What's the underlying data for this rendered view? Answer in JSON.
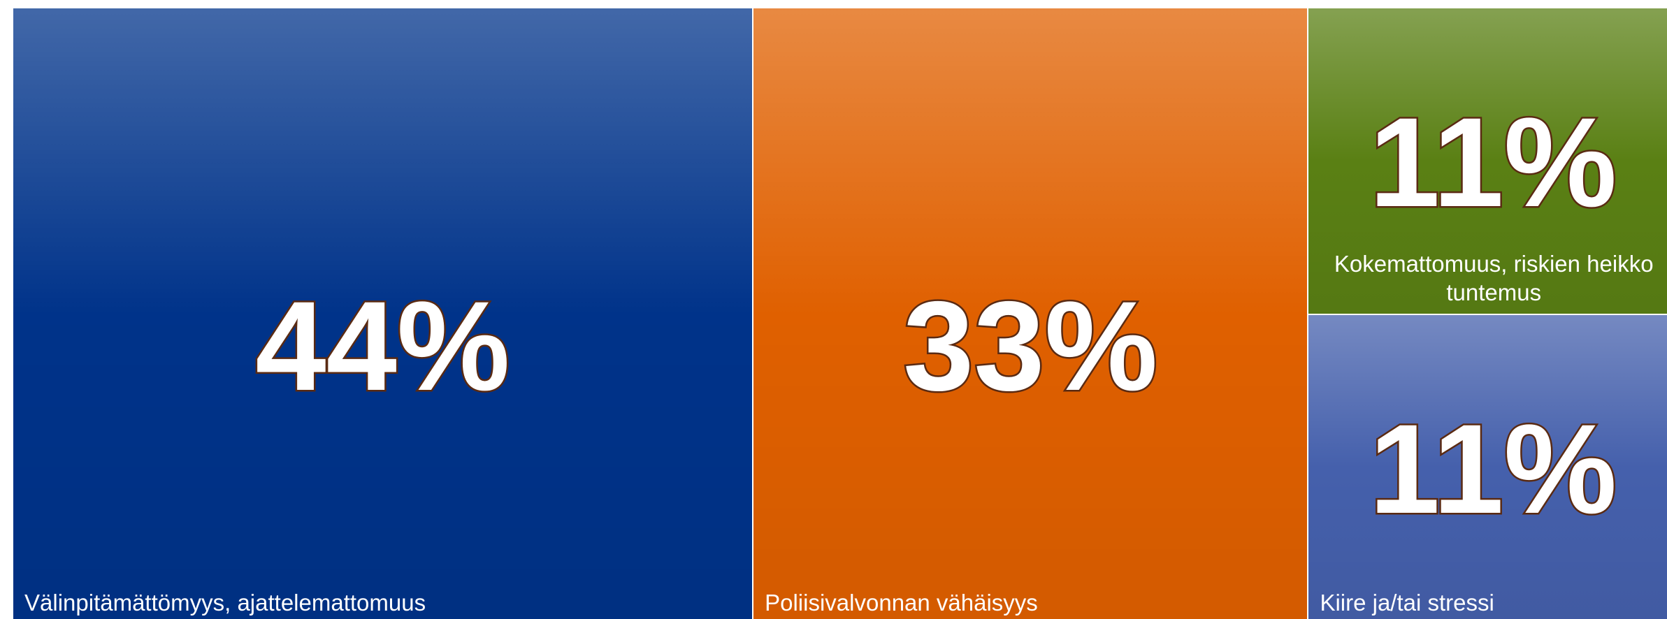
{
  "chart_data": {
    "type": "treemap",
    "categories": [
      "Välinpitämättömyys, ajattelemattomuus",
      "Poliisivalvonnan vähäisyys",
      "Kokemattomuus, riskien heikko tuntemus",
      "Kiire ja/tai stressi"
    ],
    "values": [
      44,
      33,
      11,
      11
    ],
    "value_labels": [
      "44%",
      "33%",
      "11%",
      "11%"
    ],
    "colors": [
      "#00338a",
      "#e06000",
      "#5a8014",
      "#4560ac"
    ]
  }
}
